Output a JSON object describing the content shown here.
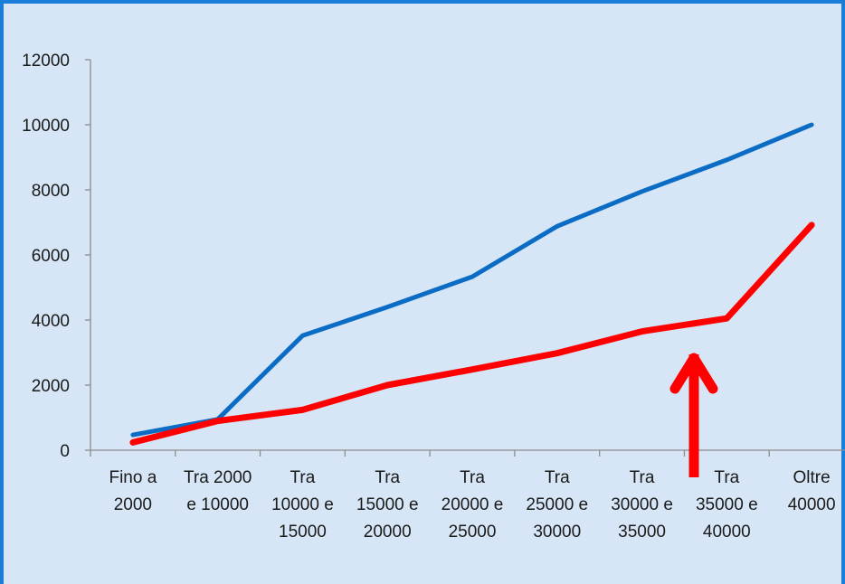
{
  "chart_data": {
    "type": "line",
    "categories": [
      [
        "Fino a",
        "2000"
      ],
      [
        "Tra 2000",
        "e 10000"
      ],
      [
        "Tra",
        "10000 e",
        "15000"
      ],
      [
        "Tra",
        "15000 e",
        "20000"
      ],
      [
        "Tra",
        "20000 e",
        "25000"
      ],
      [
        "Tra",
        "25000 e",
        "30000"
      ],
      [
        "Tra",
        "30000 e",
        "35000"
      ],
      [
        "Tra",
        "35000 e",
        "40000"
      ],
      [
        "Oltre",
        "40000"
      ]
    ],
    "series": [
      {
        "color": "#0a6cc4",
        "values": [
          470,
          950,
          3520,
          4400,
          5330,
          6880,
          7950,
          8920,
          10000
        ]
      },
      {
        "color": "#ff0000",
        "values": [
          240,
          900,
          1240,
          2000,
          2480,
          2980,
          3650,
          4050,
          6920
        ]
      }
    ],
    "yticks": [
      0,
      2000,
      4000,
      6000,
      8000,
      10000,
      12000
    ],
    "ylim": [
      0,
      12000
    ],
    "title": "",
    "xlabel": "",
    "ylabel": "",
    "grid": false,
    "legend": "none",
    "background_color": "#d6e6f6",
    "border_color": "#1a7ed8",
    "annotation": {
      "type": "arrow",
      "direction": "up",
      "color": "#ff0000",
      "points_to_category_index": 7
    }
  }
}
